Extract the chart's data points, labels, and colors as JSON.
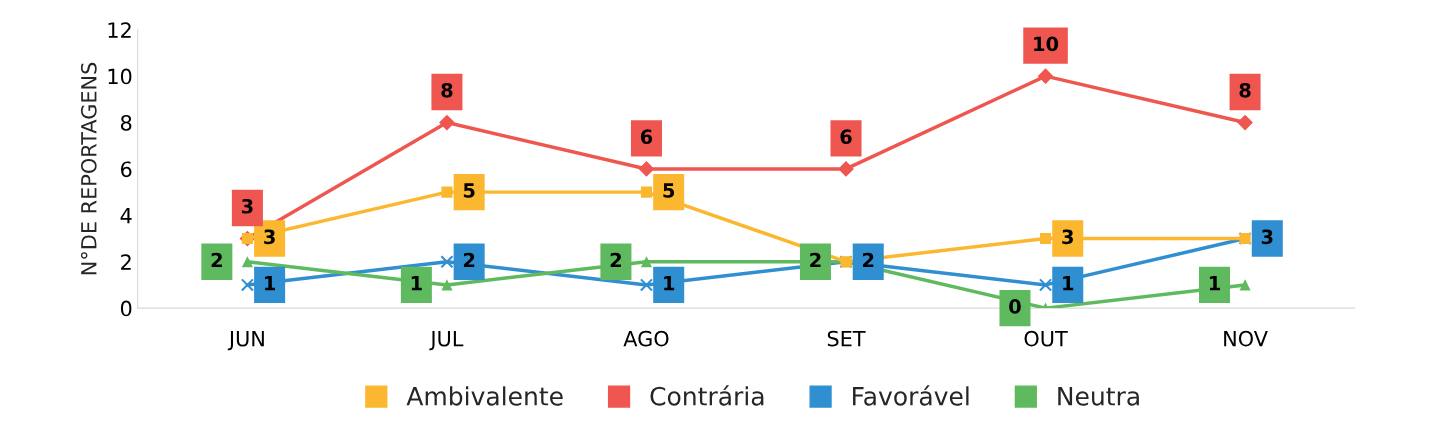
{
  "chart_data": {
    "type": "line",
    "ylabel": "N°DE REPORTAGENS",
    "categories": [
      "JUN",
      "JUL",
      "AGO",
      "SET",
      "OUT",
      "NOV"
    ],
    "series": [
      {
        "name": "Ambivalente",
        "color": "#fbb72f",
        "marker": "square",
        "values": [
          3,
          5,
          5,
          2,
          3,
          3
        ],
        "value_labels": [
          "3",
          "5",
          "5",
          null,
          "3",
          null
        ]
      },
      {
        "name": "Contrária",
        "color": "#ef5650",
        "marker": "diamond",
        "values": [
          3,
          8,
          6,
          6,
          10,
          8
        ],
        "value_labels": [
          "3",
          "8",
          "6",
          "6",
          "10",
          "8"
        ]
      },
      {
        "name": "Favorável",
        "color": "#2f8fd0",
        "marker": "cross",
        "values": [
          1,
          2,
          1,
          2,
          1,
          3
        ],
        "value_labels": [
          "1",
          "2",
          "1",
          "2",
          "1",
          "3"
        ]
      },
      {
        "name": "Neutra",
        "color": "#5fba5f",
        "marker": "triangle",
        "values": [
          2,
          1,
          2,
          2,
          0,
          1
        ],
        "value_labels": [
          "2",
          "1",
          "2",
          "2",
          "0",
          "1"
        ]
      }
    ],
    "ylim": [
      0,
      12
    ],
    "yticks": [
      0,
      2,
      4,
      6,
      8,
      10,
      12
    ],
    "grid": false,
    "legend": "bottom",
    "line_style": "solid"
  }
}
